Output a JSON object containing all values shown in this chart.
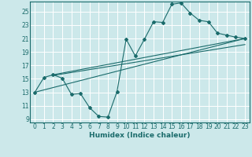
{
  "xlabel": "Humidex (Indice chaleur)",
  "bg_color": "#cce8ea",
  "grid_color": "#ffffff",
  "line_color": "#1a6b6b",
  "marker_color": "#1a6b6b",
  "xlim": [
    -0.5,
    23.5
  ],
  "ylim": [
    8.5,
    26.5
  ],
  "xticks": [
    0,
    1,
    2,
    3,
    4,
    5,
    6,
    7,
    8,
    9,
    10,
    11,
    12,
    13,
    14,
    15,
    16,
    17,
    18,
    19,
    20,
    21,
    22,
    23
  ],
  "yticks": [
    9,
    11,
    13,
    15,
    17,
    19,
    21,
    23,
    25
  ],
  "main_series": {
    "x": [
      0,
      1,
      2,
      3,
      4,
      5,
      6,
      7,
      8,
      9,
      10,
      11,
      12,
      13,
      14,
      15,
      16,
      17,
      18,
      19,
      20,
      21,
      22,
      23
    ],
    "y": [
      13,
      15.2,
      15.6,
      15.1,
      12.7,
      12.8,
      10.7,
      9.4,
      9.3,
      13.1,
      20.9,
      18.4,
      20.9,
      23.5,
      23.4,
      26.1,
      26.3,
      24.8,
      23.7,
      23.5,
      21.8,
      21.5,
      21.2,
      21.0
    ]
  },
  "trend_lines": [
    {
      "x": [
        0,
        23
      ],
      "y": [
        13.0,
        21.0
      ]
    },
    {
      "x": [
        2,
        23
      ],
      "y": [
        15.6,
        21.0
      ]
    },
    {
      "x": [
        2,
        23
      ],
      "y": [
        15.5,
        20.1
      ]
    }
  ]
}
